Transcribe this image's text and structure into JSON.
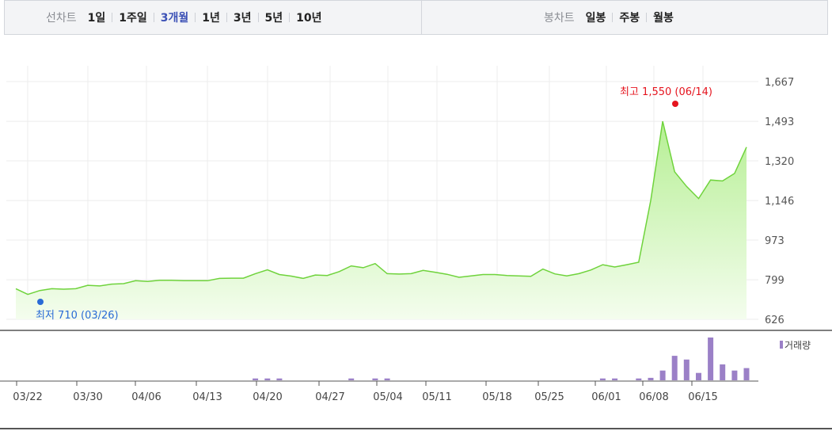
{
  "toolbar": {
    "line_title": "선차트",
    "line_options": [
      "1일",
      "1주일",
      "3개월",
      "1년",
      "3년",
      "5년",
      "10년"
    ],
    "line_active": "3개월",
    "candle_title": "봉차트",
    "candle_options": [
      "일봉",
      "주봉",
      "월봉"
    ]
  },
  "chart_data": {
    "type": "area",
    "ylim": [
      626,
      1667
    ],
    "y_ticks": [
      "1,667",
      "1,493",
      "1,320",
      "1,146",
      "973",
      "799",
      "626"
    ],
    "y_tick_values": [
      1667,
      1493,
      1320,
      1146,
      973,
      799,
      626
    ],
    "x_tick_labels": [
      "03/22",
      "03/30",
      "04/06",
      "04/13",
      "04/20",
      "04/27",
      "05/04",
      "05/11",
      "05/18",
      "05/25",
      "06/01",
      "06/08",
      "06/15"
    ],
    "grid": true,
    "max_label": "최고 1,550 (06/14)",
    "min_label": "최저 710 (03/26)",
    "volume_legend": "거래량",
    "series": [
      {
        "values": [
          760,
          735,
          752,
          760,
          758,
          760,
          775,
          772,
          780,
          782,
          795,
          792,
          797,
          797,
          795,
          795,
          795,
          805,
          806,
          806,
          826,
          843,
          822,
          815,
          805,
          820,
          818,
          835,
          860,
          852,
          870,
          826,
          824,
          826,
          840,
          832,
          823,
          810,
          816,
          822,
          822,
          818,
          816,
          814,
          846,
          825,
          816,
          826,
          842,
          865,
          855,
          865,
          876,
          1146,
          1493,
          1272,
          1208,
          1155,
          1236,
          1232,
          1265,
          1380
        ]
      },
      {
        "values": [
          0,
          0,
          0,
          0,
          0,
          0,
          0,
          0,
          0,
          0,
          0,
          0,
          0,
          0,
          0,
          0,
          0,
          0,
          0,
          0,
          1.5,
          1.5,
          1.5,
          0,
          0,
          0,
          0,
          0,
          1.5,
          0,
          1.5,
          1.5,
          0,
          0,
          0,
          0,
          0,
          0,
          0,
          0,
          0,
          0,
          0,
          0,
          0,
          0,
          0,
          0,
          0,
          1.5,
          1.5,
          0,
          1.5,
          2,
          8,
          20,
          17,
          6,
          35,
          13,
          8,
          10
        ]
      }
    ]
  }
}
